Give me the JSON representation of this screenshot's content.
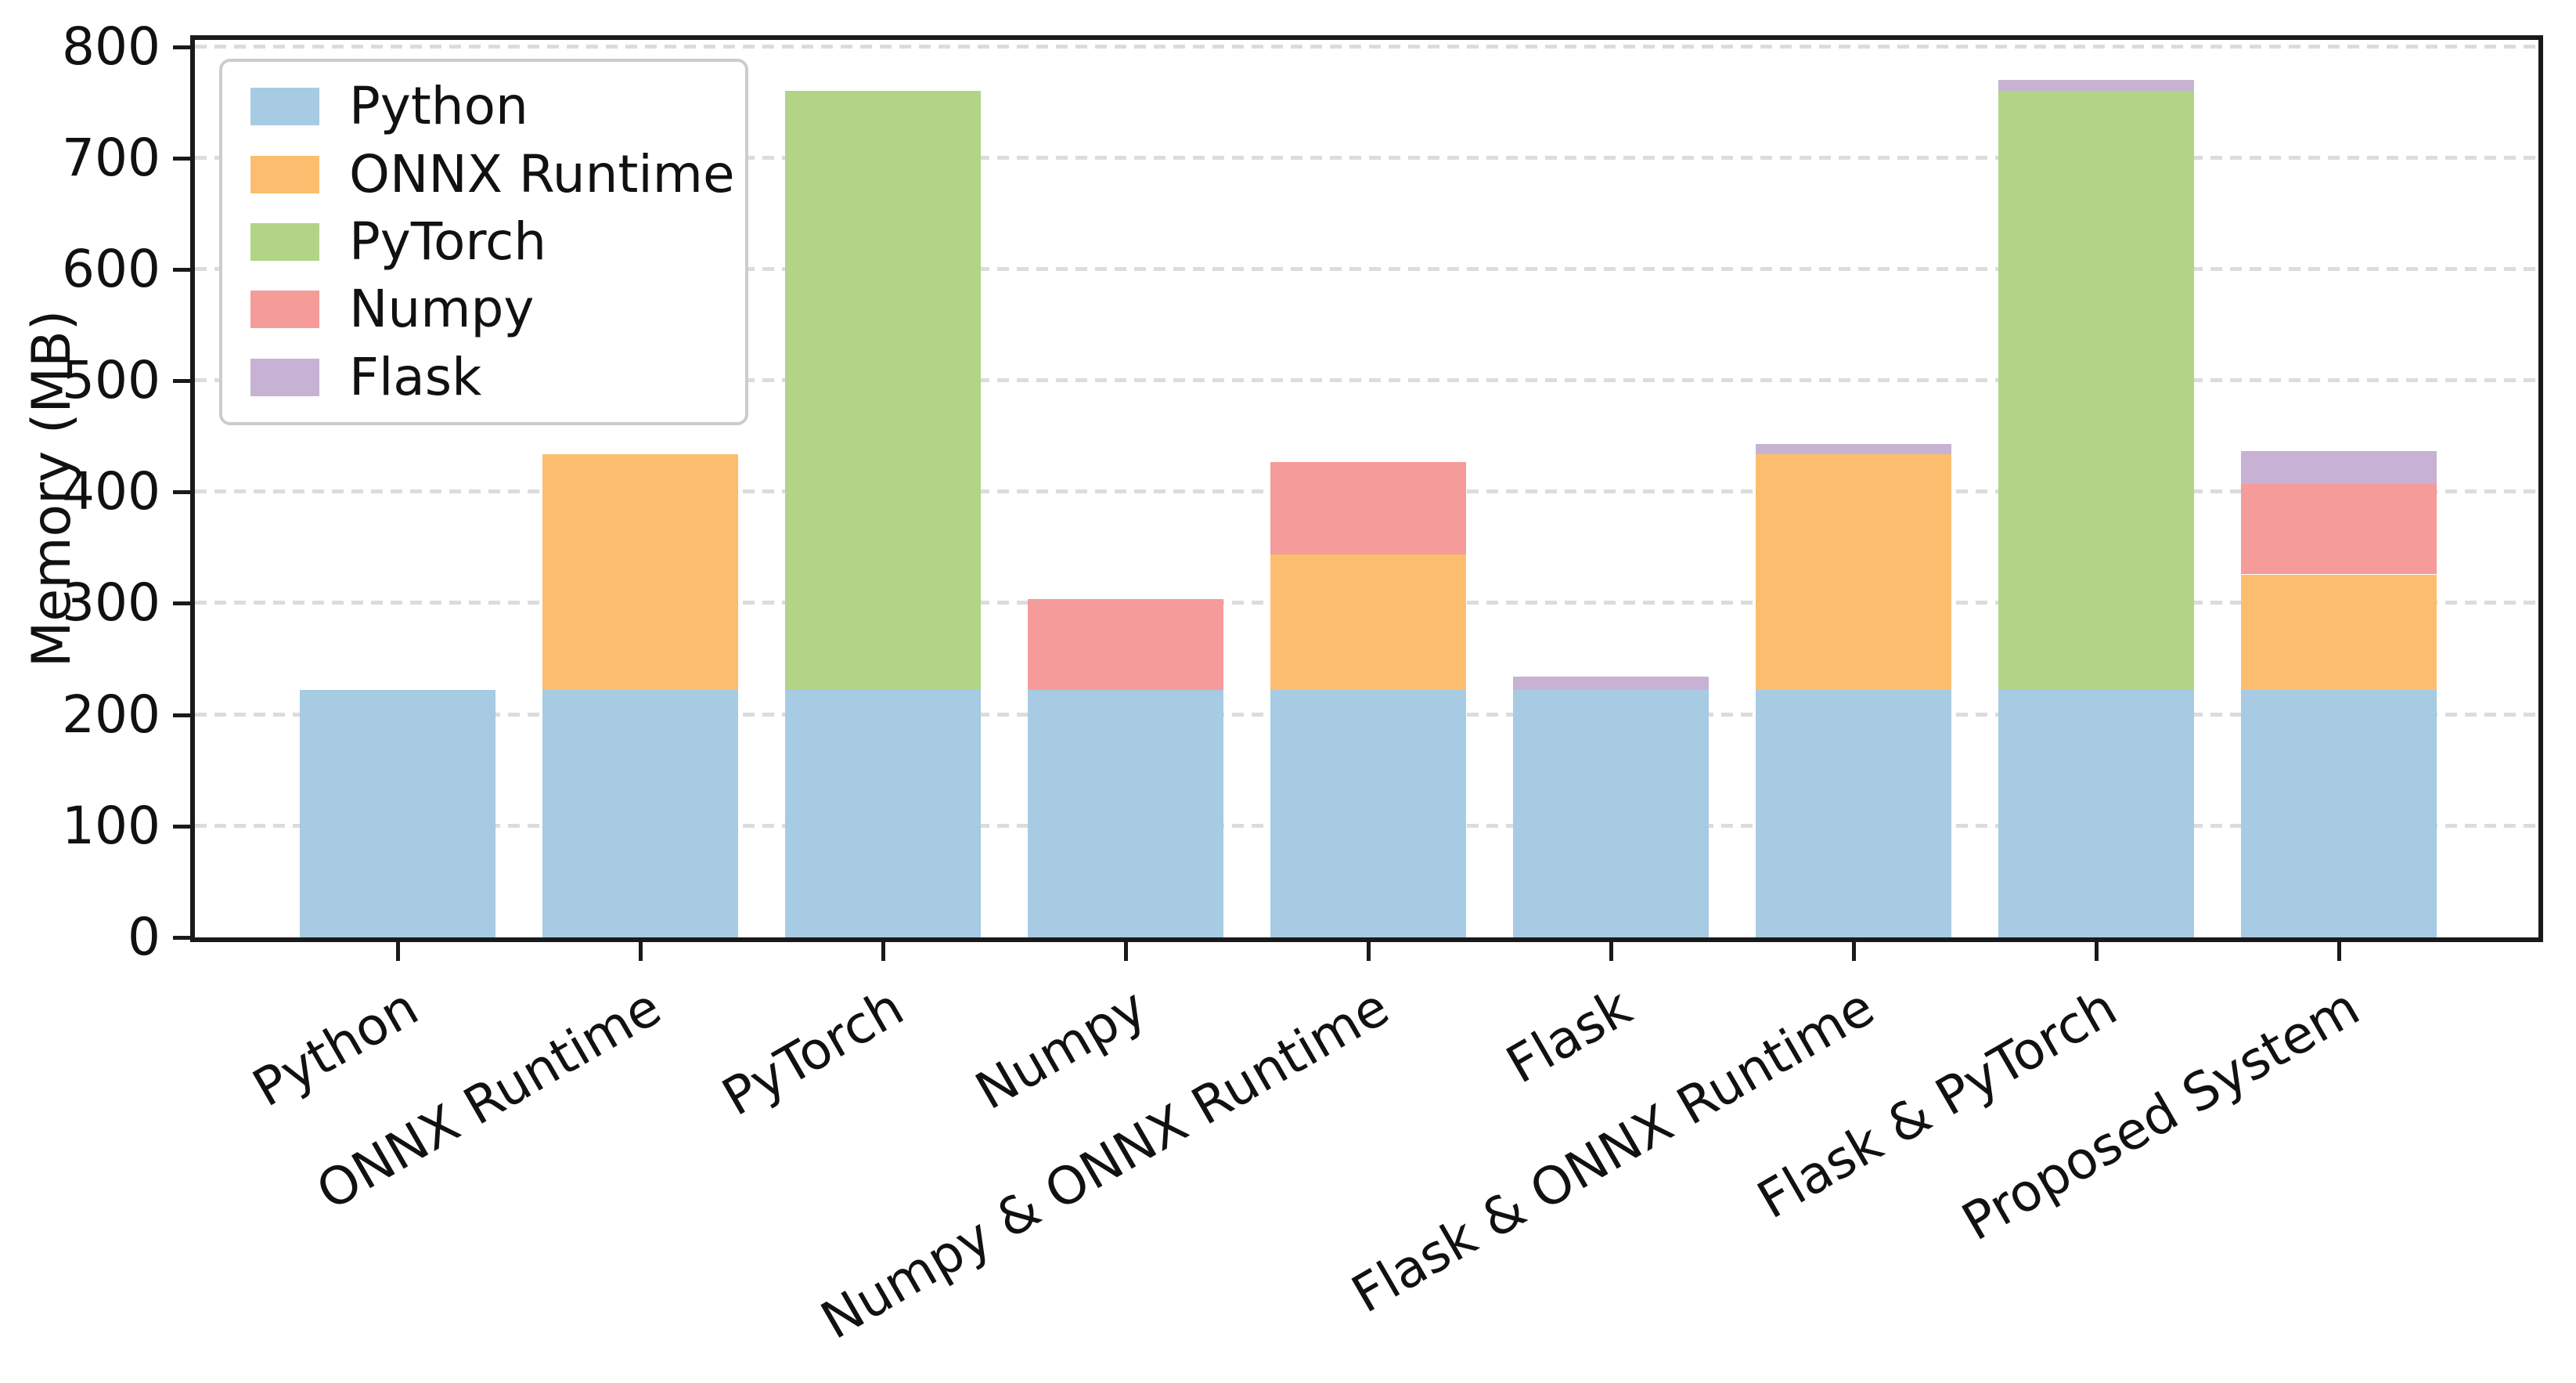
{
  "chart_data": {
    "type": "bar",
    "stacked": true,
    "title": "",
    "xlabel": "",
    "ylabel": "Memory (MB)",
    "categories": [
      "Python",
      "ONNX Runtime",
      "PyTorch",
      "Numpy",
      "Numpy & ONNX Runtime",
      "Flask",
      "Flask & ONNX Runtime",
      "Flask & PyTorch",
      "Proposed System"
    ],
    "series": [
      {
        "name": "Python",
        "color": "#a6cbe3",
        "values": [
          222,
          222,
          222,
          222,
          222,
          222,
          222,
          222,
          222
        ]
      },
      {
        "name": "ONNX Runtime",
        "color": "#fcbe6e",
        "values": [
          0,
          212,
          0,
          0,
          122,
          0,
          212,
          0,
          104
        ]
      },
      {
        "name": "PyTorch",
        "color": "#b1d487",
        "values": [
          0,
          0,
          538,
          0,
          0,
          0,
          0,
          538,
          0
        ]
      },
      {
        "name": "Numpy",
        "color": "#f59b9a",
        "values": [
          0,
          0,
          0,
          82,
          83,
          0,
          0,
          0,
          81
        ]
      },
      {
        "name": "Flask",
        "color": "#c7b2d3",
        "values": [
          0,
          0,
          0,
          0,
          0,
          12,
          9,
          10,
          30
        ]
      }
    ],
    "stack_totals_mb": [
      222,
      434,
      760,
      304,
      427,
      234,
      443,
      770,
      437
    ],
    "yticks": [
      0,
      100,
      200,
      300,
      400,
      500,
      600,
      700,
      800
    ],
    "ylim": [
      0,
      806
    ],
    "grid": "horizontal-dashed",
    "legend": {
      "position": "upper-left",
      "entries": [
        "Python",
        "ONNX Runtime",
        "PyTorch",
        "Numpy",
        "Flask"
      ]
    }
  },
  "colors": {
    "spine": "#1a1a1a",
    "grid": "#dcdcdc",
    "text": "#111111",
    "legend_border": "#cccccc",
    "background": "#ffffff"
  }
}
